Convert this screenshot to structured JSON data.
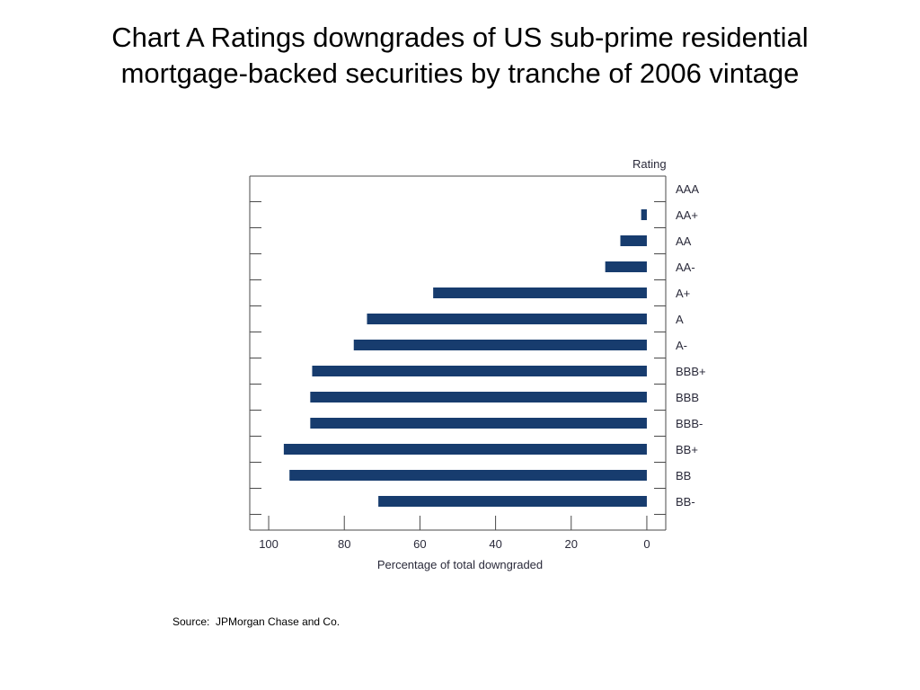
{
  "slide": {
    "title_line1": "Chart A  Ratings downgrades of US sub-prime residential",
    "title_line2": "mortgage-backed securities by tranche of 2006 vintage",
    "source": "Source:  JPMorgan Chase and Co."
  },
  "chart_data": {
    "type": "bar",
    "orientation": "horizontal",
    "x_reversed": true,
    "categories": [
      "AAA",
      "AA+",
      "AA",
      "AA-",
      "A+",
      "A",
      "A-",
      "BBB+",
      "BBB",
      "BBB-",
      "BB+",
      "BB",
      "BB-"
    ],
    "values": [
      0,
      1.5,
      7,
      11,
      56.5,
      74,
      77.5,
      88.5,
      89,
      89,
      96,
      94.5,
      71
    ],
    "category_axis_label": "Rating",
    "xlabel": "Percentage of total downgraded",
    "xlim": [
      105,
      -5
    ],
    "xticks": [
      100,
      80,
      60,
      40,
      20,
      0
    ],
    "bar_color": "#173c6e",
    "grid": false
  }
}
